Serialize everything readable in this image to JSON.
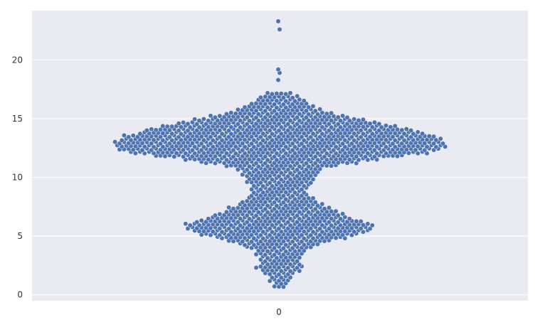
{
  "chart_data": {
    "type": "scatter",
    "subtype": "swarm",
    "title": "",
    "xlabel": "",
    "ylabel": "",
    "categories": [
      "0"
    ],
    "ylim": [
      -0.5,
      24.2
    ],
    "yticks": [
      0,
      5,
      10,
      15,
      20
    ],
    "grid": true,
    "legend": "none",
    "colors": {
      "background": "#EAEAF2",
      "gridline": "#FFFFFF",
      "point": "#4C72B0",
      "point_edge": "#FFFFFF"
    },
    "series": [
      {
        "category": "0",
        "density_profile": [
          {
            "y": 0.7,
            "half_width": 0.14
          },
          {
            "y": 1.5,
            "half_width": 0.26
          },
          {
            "y": 2.2,
            "half_width": 0.53
          },
          {
            "y": 3.0,
            "half_width": 0.42
          },
          {
            "y": 3.8,
            "half_width": 0.58
          },
          {
            "y": 4.5,
            "half_width": 1.03
          },
          {
            "y": 5.2,
            "half_width": 1.82
          },
          {
            "y": 5.9,
            "half_width": 2.2
          },
          {
            "y": 6.6,
            "half_width": 1.57
          },
          {
            "y": 7.3,
            "half_width": 1.16
          },
          {
            "y": 8.0,
            "half_width": 0.79
          },
          {
            "y": 8.8,
            "half_width": 0.62
          },
          {
            "y": 9.5,
            "half_width": 0.7
          },
          {
            "y": 10.2,
            "half_width": 0.84
          },
          {
            "y": 10.8,
            "half_width": 0.95
          },
          {
            "y": 11.6,
            "half_width": 2.2
          },
          {
            "y": 12.2,
            "half_width": 3.5
          },
          {
            "y": 12.8,
            "half_width": 3.7
          },
          {
            "y": 13.4,
            "half_width": 3.55
          },
          {
            "y": 14.1,
            "half_width": 2.9
          },
          {
            "y": 14.8,
            "half_width": 2.05
          },
          {
            "y": 15.5,
            "half_width": 1.15
          },
          {
            "y": 16.2,
            "half_width": 0.7
          },
          {
            "y": 16.9,
            "half_width": 0.43
          },
          {
            "y": 17.4,
            "half_width": 0.18
          }
        ],
        "outliers": [
          18.3,
          18.9,
          19.2,
          22.6,
          23.3
        ]
      }
    ]
  }
}
